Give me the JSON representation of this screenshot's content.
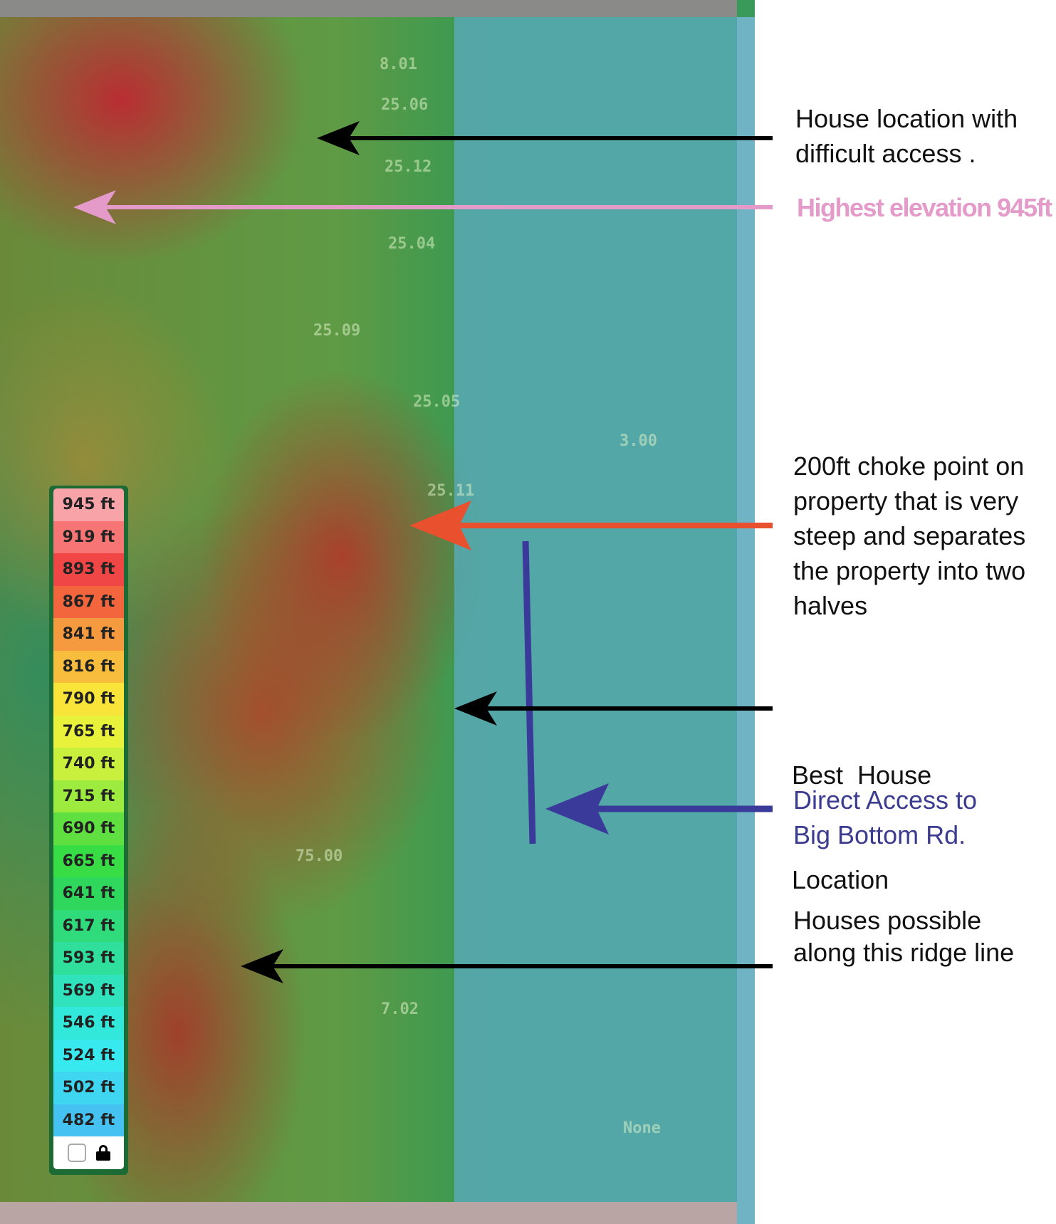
{
  "map": {
    "parcel_labels": [
      "8.01",
      "25.06",
      "25.12",
      "25.04",
      "25.09",
      "25.05",
      "25.11",
      "3.00",
      "75.00",
      "7.02",
      "None"
    ],
    "water_color": "#5aaabe"
  },
  "legend": {
    "items": [
      {
        "label": "945 ft",
        "color": "#f7a3a8"
      },
      {
        "label": "919 ft",
        "color": "#f77575"
      },
      {
        "label": "893 ft",
        "color": "#f04646"
      },
      {
        "label": "867 ft",
        "color": "#f3663d"
      },
      {
        "label": "841 ft",
        "color": "#f59a3e"
      },
      {
        "label": "816 ft",
        "color": "#f8bd3c"
      },
      {
        "label": "790 ft",
        "color": "#f9e43a"
      },
      {
        "label": "765 ft",
        "color": "#e9f23a"
      },
      {
        "label": "740 ft",
        "color": "#c8f03c"
      },
      {
        "label": "715 ft",
        "color": "#9ceb3e"
      },
      {
        "label": "690 ft",
        "color": "#5fe040"
      },
      {
        "label": "665 ft",
        "color": "#38dc45"
      },
      {
        "label": "641 ft",
        "color": "#2fd85c"
      },
      {
        "label": "617 ft",
        "color": "#2fdb7a"
      },
      {
        "label": "593 ft",
        "color": "#2fdf9b"
      },
      {
        "label": "569 ft",
        "color": "#30e3bd"
      },
      {
        "label": "546 ft",
        "color": "#32e8da"
      },
      {
        "label": "524 ft",
        "color": "#38eaf0"
      },
      {
        "label": "502 ft",
        "color": "#3fd6f2"
      },
      {
        "label": "482 ft",
        "color": "#45c2f2"
      }
    ]
  },
  "annotations": {
    "house_difficult": {
      "lines": [
        "House location with",
        "difficult access ."
      ],
      "color": "#111111"
    },
    "highest": {
      "text": "Highest elevation 945ft",
      "color": "#e59bc9"
    },
    "choke": {
      "lines": [
        "200ft choke point on",
        "property that is very",
        "steep and separates",
        "the property into two",
        "halves"
      ],
      "color": "#111111",
      "arrow_color": "#e8502e"
    },
    "best": {
      "lines": [
        "Best  House",
        "Location"
      ],
      "color": "#111111"
    },
    "access": {
      "lines": [
        "Direct Access to",
        "Big Bottom Rd."
      ],
      "color": "#3b3b8f"
    },
    "ridge": {
      "lines": [
        "Houses possible",
        "along this ridge line"
      ],
      "color": "#111111"
    }
  }
}
